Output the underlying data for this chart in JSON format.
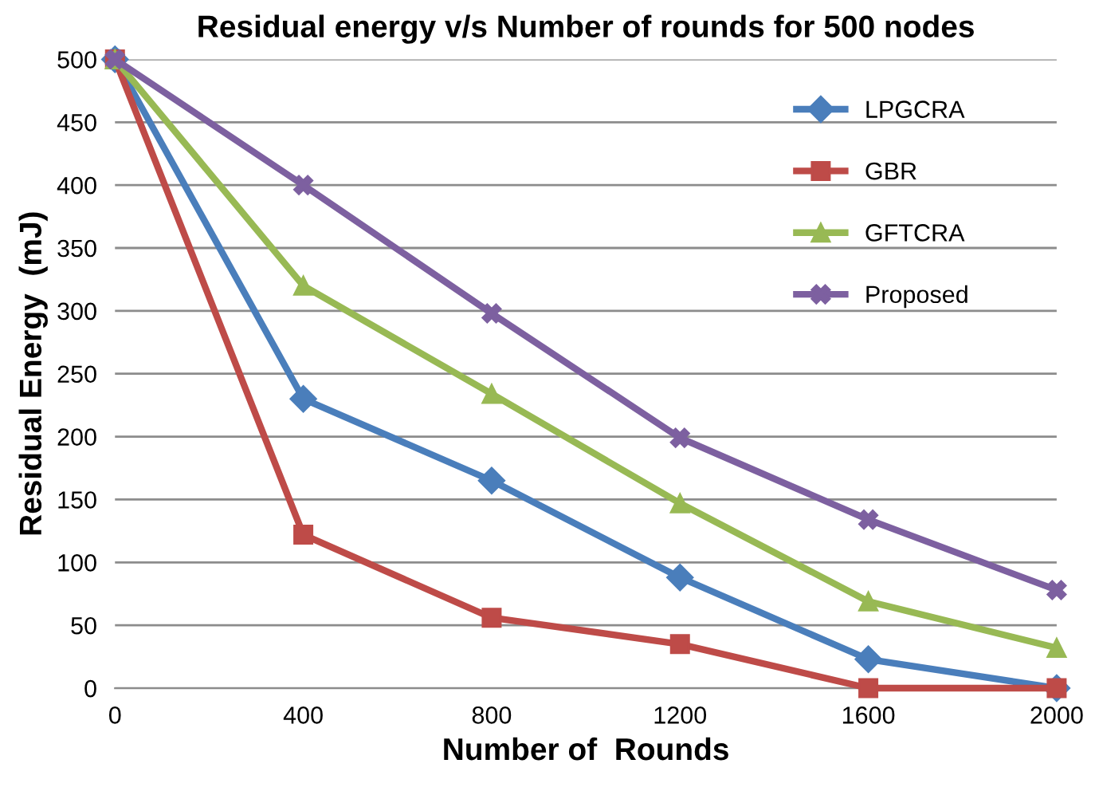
{
  "chart_data": {
    "type": "line",
    "title": "Residual energy v/s Number of rounds for 500 nodes",
    "xlabel": "Number of  Rounds",
    "ylabel": "Residual Energy  (mJ)",
    "categories": [
      "0",
      "400",
      "800",
      "1200",
      "1600",
      "2000"
    ],
    "series": [
      {
        "name": "LPGCRA",
        "color": "#4a7ebb",
        "marker": "diamond",
        "values": [
          500,
          230,
          165,
          88,
          23,
          0
        ]
      },
      {
        "name": "GBR",
        "color": "#be4b48",
        "marker": "square",
        "values": [
          500,
          122,
          56,
          35,
          0,
          0
        ]
      },
      {
        "name": "GFTCRA",
        "color": "#98b954",
        "marker": "triangle",
        "values": [
          500,
          320,
          234,
          147,
          69,
          32
        ]
      },
      {
        "name": "Proposed",
        "color": "#7d60a0",
        "marker": "cross",
        "values": [
          500,
          400,
          298,
          199,
          134,
          78
        ]
      }
    ],
    "ylim": [
      0,
      500
    ],
    "yticks": [
      0,
      50,
      100,
      150,
      200,
      250,
      300,
      350,
      400,
      450,
      500
    ],
    "grid": "y",
    "legend": "top right",
    "line_style": "solid"
  }
}
